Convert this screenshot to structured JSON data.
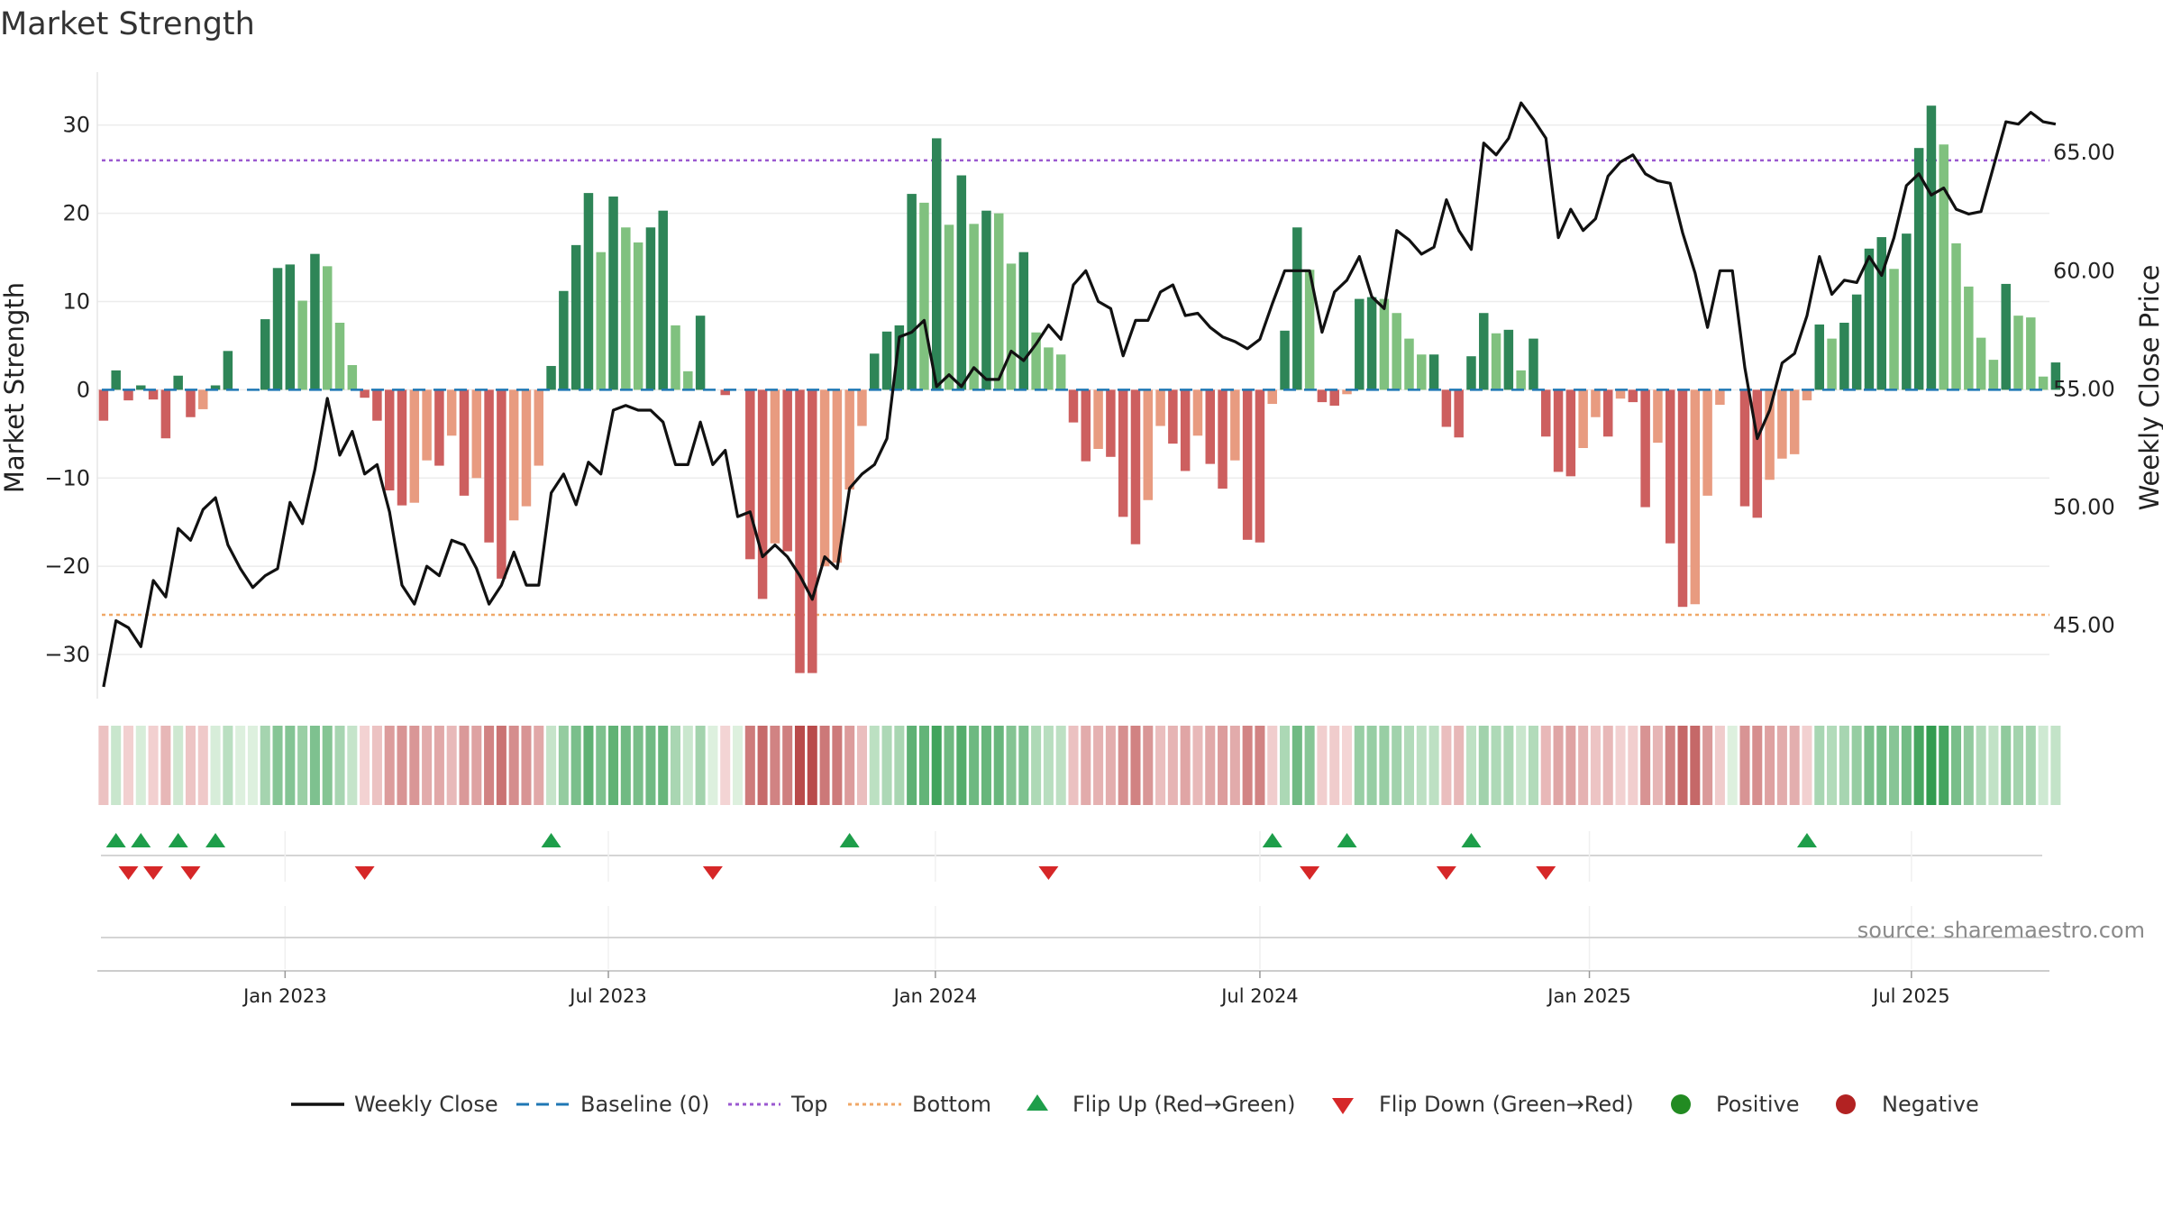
{
  "colors": {
    "strong_green": "#2e8557",
    "light_green": "#80c17f",
    "strong_red": "#cd5f5f",
    "light_red": "#e89b80",
    "line": "#111111",
    "top": "#9b59d0",
    "bottom": "#f0a868",
    "baseline": "#1f77b4",
    "flip_up": "#1e9e4a",
    "flip_down": "#d62728",
    "positive": "#228b22",
    "negative": "#b22222",
    "grid": "#ececec"
  },
  "chart_data": {
    "type": "bar",
    "title": "Market Strength",
    "ylabel_left": "Market Strength",
    "ylabel_right": "Weekly Close Price",
    "y_left_range": [
      -35,
      36
    ],
    "y_right_range": [
      41.9,
      68.4
    ],
    "y_left_ticks": [
      30,
      20,
      10,
      0,
      -10,
      -20,
      -30
    ],
    "y_left_tick_labels": [
      "30",
      "20",
      "10",
      "0",
      "−10",
      "−20",
      "−30"
    ],
    "y_right_ticks": [
      65,
      60,
      55,
      50,
      45
    ],
    "y_right_tick_labels": [
      "65.00",
      "60.00",
      "55.00",
      "50.00",
      "45.00"
    ],
    "top_threshold": 26,
    "bottom_threshold": -25.5,
    "week_range": [
      -0.5,
      156.5
    ],
    "x_ticks": [
      {
        "label": "Jan 2023",
        "week": 14.6
      },
      {
        "label": "Jul 2023",
        "week": 40.6
      },
      {
        "label": "Jan 2024",
        "week": 66.9
      },
      {
        "label": "Jul 2024",
        "week": 93
      },
      {
        "label": "Jan 2025",
        "week": 119.5
      },
      {
        "label": "Jul 2025",
        "week": 145.4
      }
    ],
    "strength": [
      -3.5,
      2.2,
      -1.2,
      0.5,
      -1.1,
      -5.5,
      1.6,
      -3.1,
      -2.2,
      0.5,
      4.4,
      0,
      0,
      8,
      13.8,
      14.2,
      10.1,
      15.4,
      14,
      7.6,
      2.8,
      -0.9,
      -3.5,
      -11.4,
      -13.1,
      -12.8,
      -8,
      -8.6,
      -5.2,
      -12,
      -10,
      -17.3,
      -21.4,
      -14.8,
      -13.2,
      -8.6,
      2.7,
      11.2,
      16.4,
      22.3,
      15.6,
      21.9,
      18.4,
      16.7,
      18.4,
      20.3,
      7.3,
      2.1,
      8.4,
      0,
      -0.6,
      0,
      -19.2,
      -23.7,
      -17.4,
      -18.3,
      -32.1,
      -32.1,
      -20,
      -19.6,
      -11.3,
      -4.1,
      4.1,
      6.6,
      7.3,
      22.2,
      21.2,
      28.5,
      18.7,
      24.3,
      18.8,
      20.3,
      20,
      14.3,
      15.6,
      6.5,
      4.8,
      4,
      -3.7,
      -8.1,
      -6.7,
      -7.6,
      -14.4,
      -17.5,
      -12.5,
      -4.1,
      -6.1,
      -9.2,
      -5.2,
      -8.4,
      -11.2,
      -8,
      -17,
      -17.3,
      -1.6,
      6.7,
      18.4,
      13.6,
      -1.4,
      -1.8,
      -0.5,
      10.3,
      10.5,
      10.3,
      8.7,
      5.8,
      4,
      4,
      -4.2,
      -5.4,
      3.8,
      8.7,
      6.4,
      6.8,
      2.2,
      5.8,
      -5.3,
      -9.3,
      -9.8,
      -6.6,
      -3.1,
      -5.3,
      -1,
      -1.4,
      -13.3,
      -6,
      -17.4,
      -24.6,
      -24.3,
      -12,
      -1.7,
      0,
      -13.2,
      -14.5,
      -10.2,
      -7.8,
      -7.3,
      -1.2,
      7.4,
      5.8,
      7.6,
      10.8,
      16,
      17.3,
      13.7,
      17.7,
      27.4,
      32.2,
      27.8,
      16.6,
      11.7,
      5.9,
      3.4,
      12,
      8.4,
      8.2,
      1.5,
      3.1
    ],
    "weekly_close": [
      42.4,
      45.2,
      44.9,
      44.1,
      46.9,
      46.2,
      49.1,
      48.6,
      49.9,
      50.4,
      48.4,
      47.4,
      46.6,
      47.1,
      47.4,
      50.2,
      49.3,
      51.6,
      54.6,
      52.2,
      53.2,
      51.4,
      51.8,
      49.8,
      46.7,
      45.9,
      47.5,
      47.1,
      48.6,
      48.4,
      47.4,
      45.9,
      46.7,
      48.1,
      46.7,
      46.7,
      50.6,
      51.4,
      50.1,
      51.9,
      51.4,
      54.1,
      54.3,
      54.1,
      54.1,
      53.6,
      51.8,
      51.8,
      53.6,
      51.8,
      52.4,
      49.6,
      49.8,
      47.9,
      48.4,
      47.9,
      47.1,
      46.1,
      47.9,
      47.4,
      50.8,
      51.4,
      51.8,
      52.9,
      57.2,
      57.4,
      57.9,
      55.1,
      55.6,
      55.1,
      55.9,
      55.4,
      55.4,
      56.6,
      56.2,
      56.9,
      57.7,
      57.1,
      59.4,
      60.0,
      58.7,
      58.4,
      56.4,
      57.9,
      57.9,
      59.1,
      59.4,
      58.1,
      58.2,
      57.6,
      57.2,
      57.0,
      56.7,
      57.1,
      58.6,
      60.0,
      60.0,
      60.0,
      57.4,
      59.1,
      59.6,
      60.6,
      58.9,
      58.4,
      61.7,
      61.3,
      60.7,
      61.0,
      63.0,
      61.7,
      60.9,
      65.4,
      64.9,
      65.6,
      67.1,
      66.4,
      65.6,
      61.4,
      62.6,
      61.7,
      62.2,
      64.0,
      64.6,
      64.9,
      64.1,
      63.8,
      63.7,
      61.6,
      59.9,
      57.6,
      60.0,
      60.0,
      55.9,
      52.9,
      54.1,
      56.1,
      56.5,
      58.1,
      60.6,
      59.0,
      59.6,
      59.5,
      60.6,
      59.8,
      61.4,
      63.6,
      64.1,
      63.2,
      63.5,
      62.6,
      62.4,
      62.5,
      64.4,
      66.3,
      66.2,
      66.7,
      66.3,
      66.2
    ],
    "flip_up_weeks": [
      1,
      3,
      6,
      9,
      36,
      60,
      94,
      100,
      110,
      137
    ],
    "flip_down_weeks": [
      2,
      4,
      7,
      21,
      49,
      76,
      97,
      108,
      116
    ],
    "legend": [
      "Weekly Close",
      "Baseline (0)",
      "Top",
      "Bottom",
      "Flip Up (Red→Green)",
      "Flip Down (Green→Red)",
      "Positive",
      "Negative"
    ],
    "source": "source: sharemaestro.com"
  }
}
